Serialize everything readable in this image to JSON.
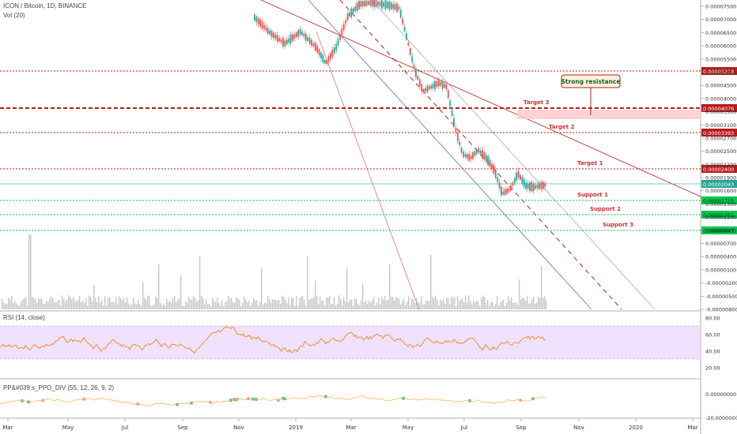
{
  "header": {
    "symbol": "ICON / Bitcoin, 1D, BINANCE",
    "volume": "Vol (20)",
    "rsi": "RSI (14, close)",
    "ppo": "PP&#039;s_PPO_DIV (55, 12, 26, 9, 2)"
  },
  "colors": {
    "up": "#26a69a",
    "down": "#ef5350",
    "resistance": "#b71c1c",
    "support": "#00c853",
    "rsi_line": "#f57c00",
    "rsi_band": "#e9d4ff",
    "channel_blue": "#5c6bc0",
    "price_label": "#26a69a",
    "annotation_bg": "#fff3e0"
  },
  "chart_data": {
    "type": "candlestick",
    "x_axis": {
      "ticks": [
        "Mar",
        "May",
        "Jul",
        "Sep",
        "Nov",
        "2019",
        "Mar",
        "May",
        "Jul",
        "Sep",
        "Nov",
        "2020",
        "Mar"
      ]
    },
    "y_axis": {
      "ticks": [
        "0.00007500",
        "0.00007000",
        "0.00006500",
        "0.00006000",
        "0.00005500",
        "0.00005000",
        "0.00004500",
        "0.00004000",
        "0.00003500",
        "0.00003100",
        "0.00002700",
        "0.00002500",
        "0.00002200",
        "0.00001900",
        "0.00001600",
        "0.00001300",
        "0.00001100",
        "0.00000900",
        "0.00000700",
        "0.00000400",
        "0.00000100",
        "-0.00000200",
        "-0.00000500",
        "-0.00000800"
      ]
    },
    "levels": [
      {
        "name": "Target 3",
        "price": "0.00004076",
        "kind": "resistance"
      },
      {
        "name": "Target 2",
        "price": "0.00003393",
        "kind": "resistance"
      },
      {
        "name": "Target 1",
        "price": "0.00002400",
        "kind": "resistance"
      },
      {
        "name": "",
        "price": "0.00005218",
        "kind": "resistance"
      },
      {
        "name": "Support 1",
        "price": "0.00001755",
        "kind": "support"
      },
      {
        "name": "Support 2",
        "price": "0.00001251",
        "kind": "support"
      },
      {
        "name": "Support 3",
        "price": "0.00000847",
        "kind": "support"
      }
    ],
    "current_price": "0.00002043",
    "annotation": "Strong resistance",
    "rsi_axis": [
      "80.00",
      "60.00",
      "40.00",
      "20.00"
    ],
    "ppo_axis": [
      "0.00000000",
      "-20.00000000"
    ]
  }
}
